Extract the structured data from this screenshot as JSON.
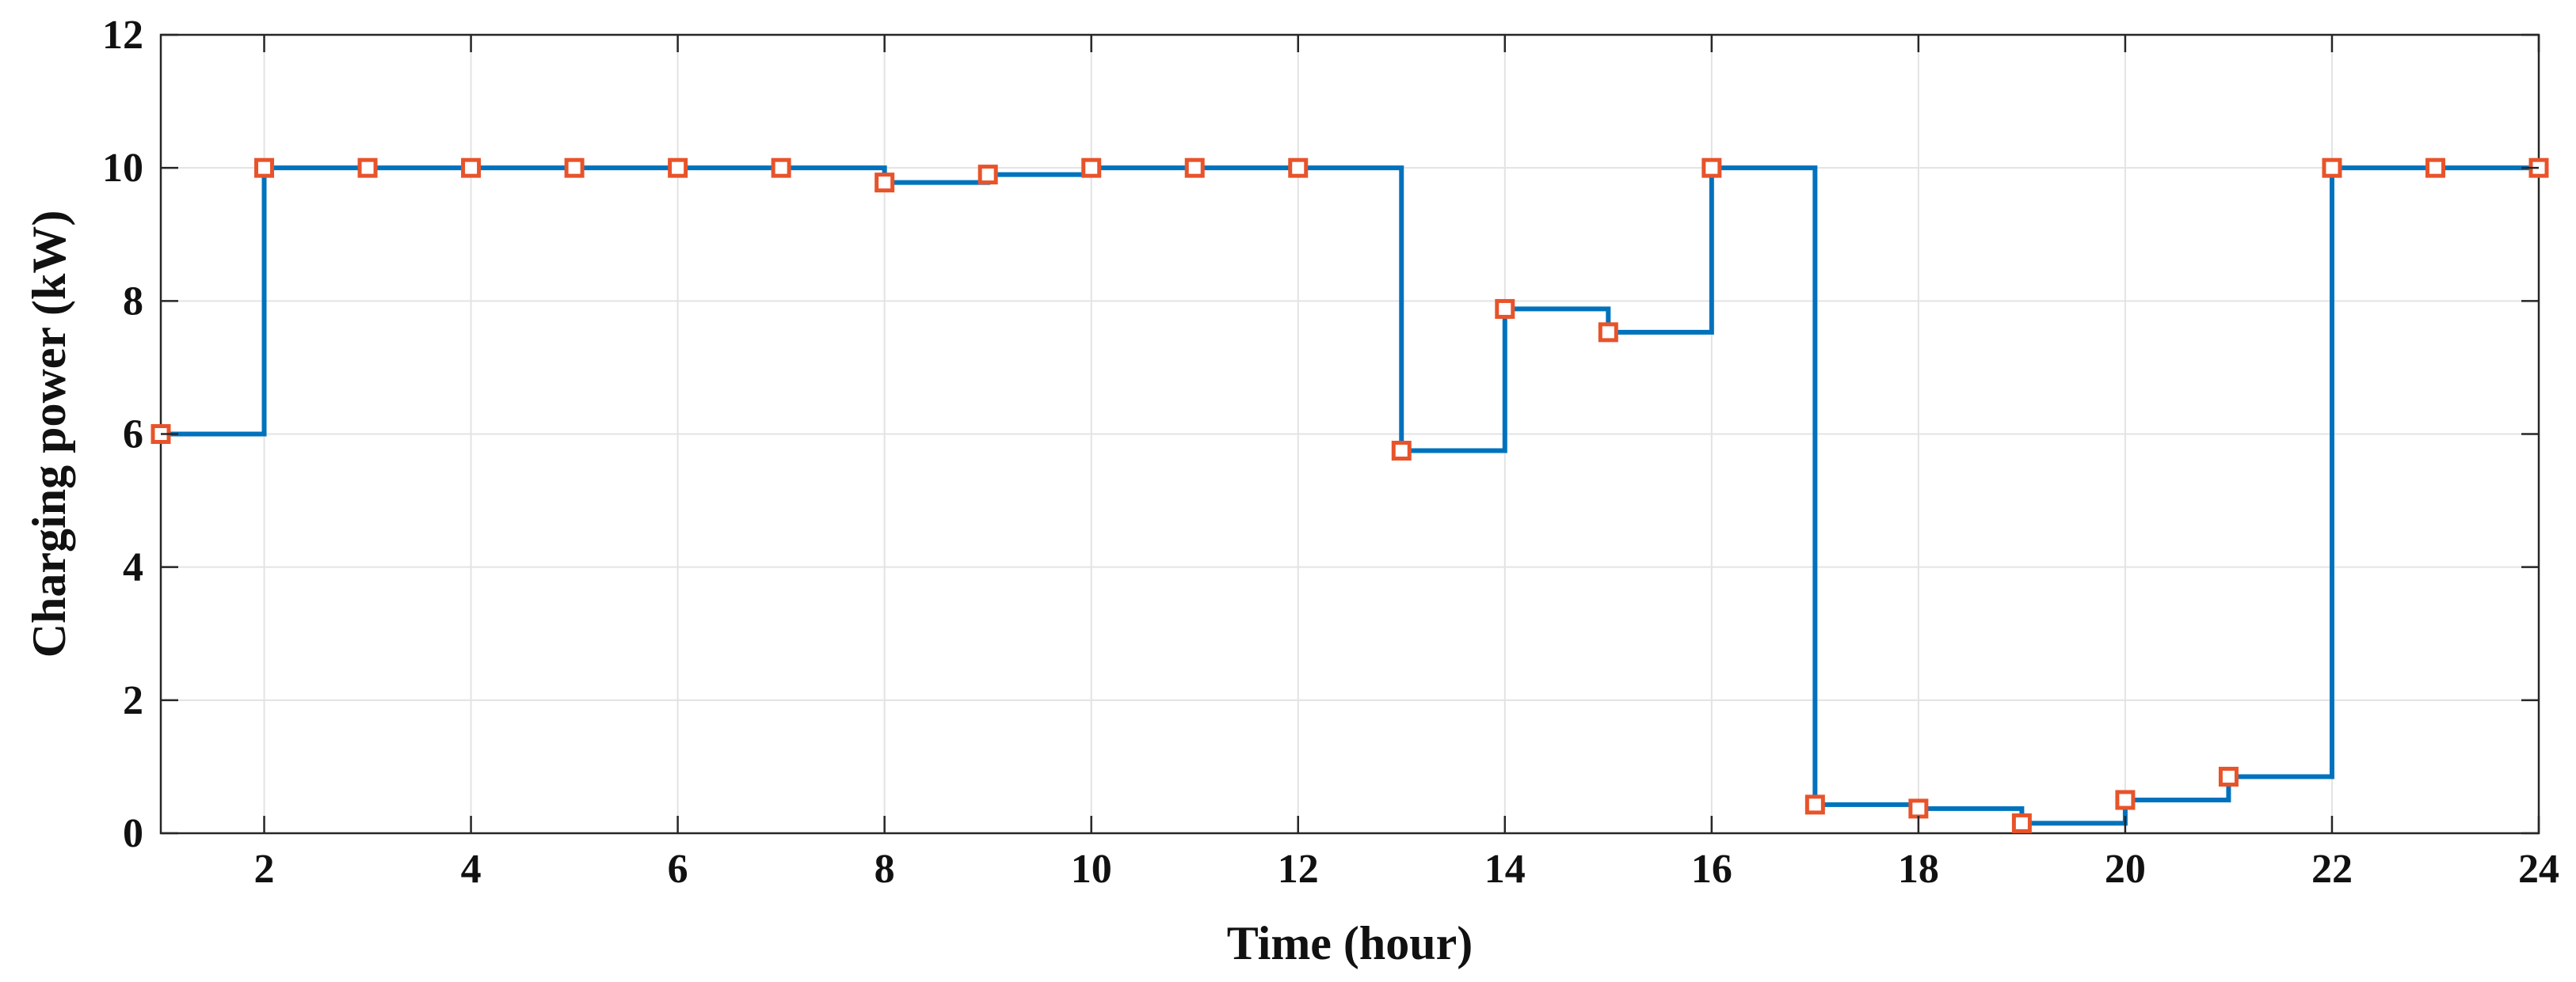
{
  "chart_data": {
    "type": "line",
    "style": "stairs",
    "title": "",
    "xlabel": "Time (hour)",
    "ylabel": "Charging power (kW)",
    "xlim": [
      1,
      24
    ],
    "ylim": [
      0,
      12
    ],
    "xticks": [
      2,
      4,
      6,
      8,
      10,
      12,
      14,
      16,
      18,
      20,
      22,
      24
    ],
    "yticks": [
      0,
      2,
      4,
      6,
      8,
      10,
      12
    ],
    "grid": true,
    "legend": "none",
    "series": [
      {
        "x": [
          1,
          2,
          3,
          4,
          5,
          6,
          7,
          8,
          9,
          10,
          11,
          12,
          13,
          14,
          15,
          16,
          17,
          18,
          19,
          20,
          21,
          22,
          23,
          24
        ],
        "values": [
          6.0,
          10.0,
          10.0,
          10.0,
          10.0,
          10.0,
          10.0,
          9.78,
          9.9,
          10.0,
          10.0,
          10.0,
          5.75,
          7.88,
          7.53,
          10.0,
          0.43,
          0.37,
          0.15,
          0.5,
          0.85,
          10.0,
          10.0,
          10.0
        ],
        "line_color": "#0072BD",
        "marker": "square",
        "marker_edge_color": "#E8532A",
        "marker_face_color": "#ffffff"
      }
    ]
  }
}
